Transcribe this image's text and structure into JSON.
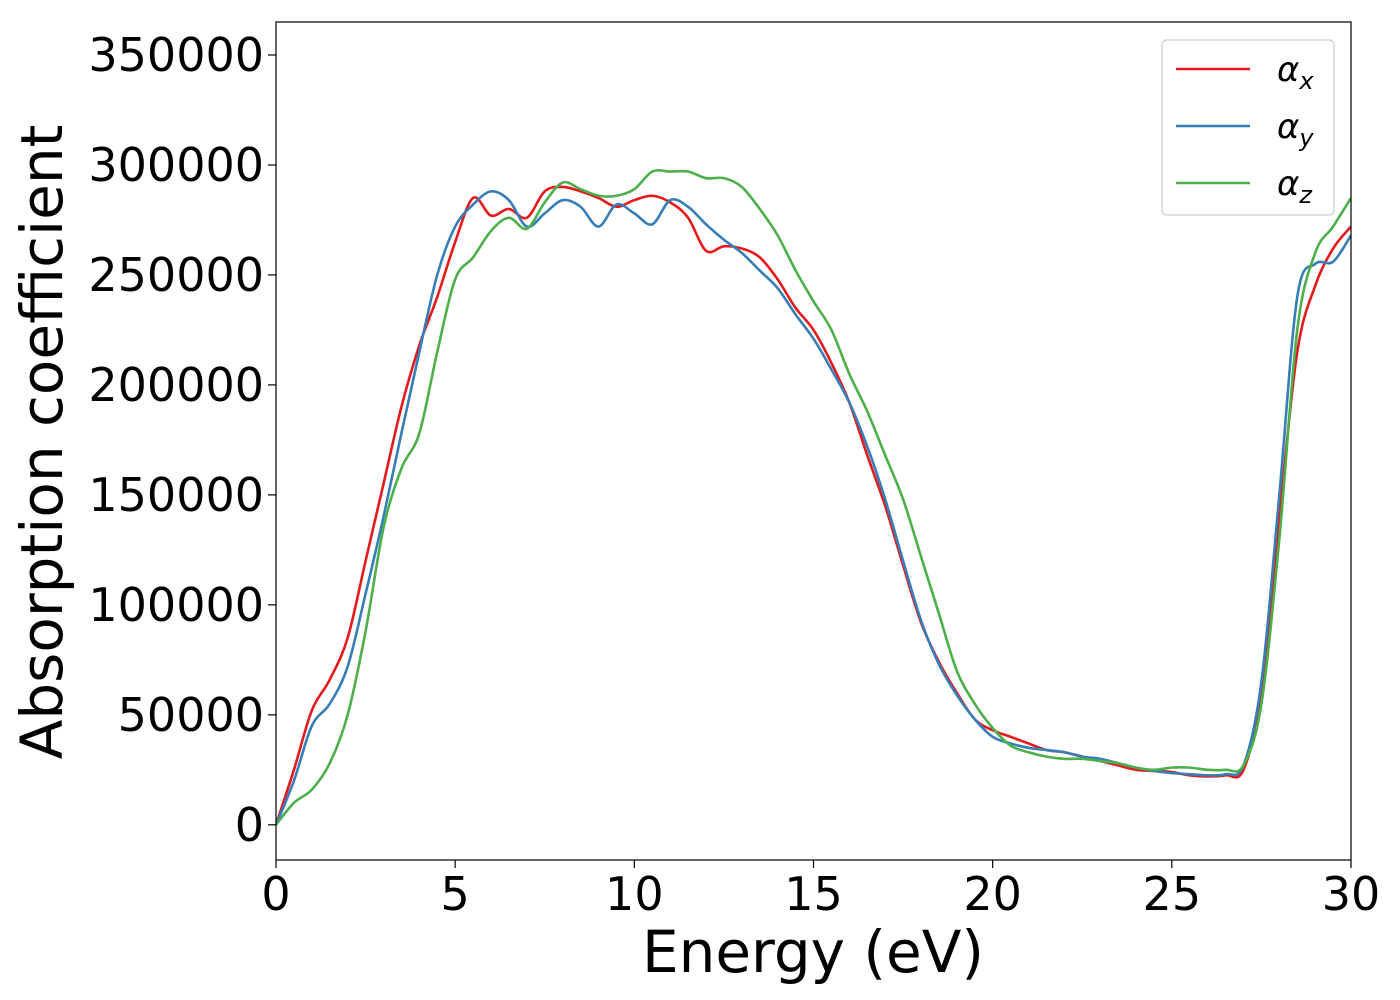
{
  "chart_data": {
    "type": "line",
    "xlabel": "Energy (eV)",
    "ylabel": "Absorption coefficient",
    "xlim": [
      0,
      30
    ],
    "ylim": [
      -16000,
      365000
    ],
    "xticks": [
      0,
      5,
      10,
      15,
      20,
      25,
      30
    ],
    "yticks": [
      0,
      50000,
      100000,
      150000,
      200000,
      250000,
      300000,
      350000
    ],
    "grid": false,
    "legend_position": "top-right",
    "series": [
      {
        "name": "α_x",
        "label_main": "α",
        "label_sub": "x",
        "color": "#e41a1c",
        "x": [
          0,
          0.5,
          1,
          1.5,
          2,
          2.5,
          3,
          3.5,
          4,
          4.5,
          5,
          5.5,
          6,
          6.5,
          7,
          7.5,
          8,
          8.5,
          9,
          9.5,
          10,
          10.5,
          11,
          11.5,
          12,
          12.5,
          13,
          13.5,
          14,
          14.5,
          15,
          15.5,
          16,
          16.5,
          17,
          17.5,
          18,
          18.5,
          19,
          19.5,
          20,
          20.5,
          21,
          21.5,
          22,
          22.5,
          23,
          23.5,
          24,
          24.5,
          25,
          25.5,
          26,
          26.5,
          27,
          27.5,
          28,
          28.5,
          29,
          29.5,
          30
        ],
        "values": [
          0,
          25000,
          52000,
          66000,
          85000,
          120000,
          155000,
          190000,
          218000,
          240000,
          265000,
          285000,
          277000,
          280000,
          276000,
          288000,
          290000,
          288000,
          285000,
          281000,
          284000,
          286000,
          283000,
          276000,
          261000,
          263000,
          262000,
          258000,
          248000,
          235000,
          225000,
          210000,
          192000,
          168000,
          145000,
          118000,
          92000,
          74000,
          60000,
          48000,
          43000,
          40000,
          37000,
          34000,
          33000,
          31000,
          29000,
          27000,
          25000,
          24500,
          24000,
          22500,
          22000,
          22500,
          25000,
          60000,
          140000,
          215000,
          245000,
          262000,
          272000
        ]
      },
      {
        "name": "α_y",
        "label_main": "α",
        "label_sub": "y",
        "color": "#377eb8",
        "x": [
          0,
          0.5,
          1,
          1.5,
          2,
          2.5,
          3,
          3.5,
          4,
          4.5,
          5,
          5.5,
          6,
          6.5,
          7,
          7.5,
          8,
          8.5,
          9,
          9.5,
          10,
          10.5,
          11,
          11.5,
          12,
          12.5,
          13,
          13.5,
          14,
          14.5,
          15,
          15.5,
          16,
          16.5,
          17,
          17.5,
          18,
          18.5,
          19,
          19.5,
          20,
          20.5,
          21,
          21.5,
          22,
          22.5,
          23,
          23.5,
          24,
          24.5,
          25,
          25.5,
          26,
          26.5,
          27,
          27.5,
          28,
          28.5,
          29,
          29.5,
          30
        ],
        "values": [
          0,
          20000,
          45000,
          55000,
          72000,
          105000,
          140000,
          178000,
          215000,
          250000,
          272000,
          282000,
          288000,
          284000,
          272000,
          278000,
          284000,
          281000,
          272000,
          282000,
          278000,
          273000,
          284000,
          281000,
          273000,
          266000,
          260000,
          252000,
          244000,
          232000,
          221000,
          207000,
          192000,
          172000,
          148000,
          120000,
          93000,
          73000,
          59000,
          48000,
          40000,
          37000,
          35000,
          34000,
          33000,
          31000,
          30000,
          28000,
          26000,
          24500,
          23500,
          23000,
          22500,
          23000,
          27000,
          65000,
          150000,
          240000,
          255000,
          256000,
          268000
        ]
      },
      {
        "name": "α_z",
        "label_main": "α",
        "label_sub": "z",
        "color": "#4daf4a",
        "x": [
          0,
          0.5,
          1,
          1.5,
          2,
          2.5,
          3,
          3.5,
          4,
          4.5,
          5,
          5.5,
          6,
          6.5,
          7,
          7.5,
          8,
          8.5,
          9,
          9.5,
          10,
          10.5,
          11,
          11.5,
          12,
          12.5,
          13,
          13.5,
          14,
          14.5,
          15,
          15.5,
          16,
          16.5,
          17,
          17.5,
          18,
          18.5,
          19,
          19.5,
          20,
          20.5,
          21,
          21.5,
          22,
          22.5,
          23,
          23.5,
          24,
          24.5,
          25,
          25.5,
          26,
          26.5,
          27,
          27.5,
          28,
          28.5,
          29,
          29.5,
          30
        ],
        "values": [
          0,
          10000,
          16000,
          28000,
          50000,
          88000,
          135000,
          162000,
          178000,
          215000,
          248000,
          258000,
          270000,
          276000,
          271000,
          283000,
          292000,
          289000,
          286000,
          286000,
          289000,
          297000,
          297000,
          297000,
          294000,
          294000,
          290000,
          280000,
          268000,
          252000,
          238000,
          225000,
          205000,
          188000,
          168000,
          148000,
          122000,
          96000,
          70000,
          55000,
          44000,
          36000,
          33000,
          31000,
          30000,
          30000,
          29000,
          28000,
          26000,
          25000,
          26000,
          26000,
          25000,
          25000,
          27000,
          55000,
          130000,
          225000,
          260000,
          272000,
          285000
        ]
      }
    ]
  }
}
